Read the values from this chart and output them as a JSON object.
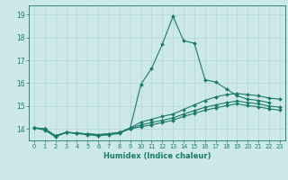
{
  "xlabel": "Humidex (Indice chaleur)",
  "background_color": "#cce8e8",
  "grid_color": "#b8d8d8",
  "line_color": "#1a7a6a",
  "xlim": [
    -0.5,
    23.5
  ],
  "ylim": [
    13.5,
    19.4
  ],
  "yticks": [
    14,
    15,
    16,
    17,
    18,
    19
  ],
  "xticks": [
    0,
    1,
    2,
    3,
    4,
    5,
    6,
    7,
    8,
    9,
    10,
    11,
    12,
    13,
    14,
    15,
    16,
    17,
    18,
    19,
    20,
    21,
    22,
    23
  ],
  "line1_x": [
    0,
    1,
    2,
    3,
    4,
    5,
    6,
    7,
    8,
    9,
    10,
    11,
    12,
    13,
    14,
    15,
    16,
    17,
    18,
    19,
    20,
    21,
    22
  ],
  "line1_y": [
    14.05,
    13.95,
    13.65,
    13.85,
    13.8,
    13.75,
    13.7,
    13.75,
    13.8,
    14.05,
    15.95,
    16.65,
    17.7,
    18.92,
    17.85,
    17.75,
    16.15,
    16.05,
    15.75,
    15.45,
    15.3,
    15.25,
    15.15
  ],
  "line2_x": [
    0,
    1,
    2,
    3,
    4,
    5,
    6,
    7,
    8,
    9,
    10,
    11,
    12,
    13,
    14,
    15,
    16,
    17,
    18,
    19,
    20,
    21,
    22,
    23
  ],
  "line2_y": [
    14.05,
    14.0,
    13.7,
    13.85,
    13.82,
    13.78,
    13.75,
    13.78,
    13.85,
    14.05,
    14.3,
    14.42,
    14.55,
    14.65,
    14.85,
    15.05,
    15.25,
    15.4,
    15.5,
    15.55,
    15.5,
    15.45,
    15.35,
    15.3
  ],
  "line3_x": [
    0,
    1,
    2,
    3,
    4,
    5,
    6,
    7,
    8,
    9,
    10,
    11,
    12,
    13,
    14,
    15,
    16,
    17,
    18,
    19,
    20,
    21,
    22,
    23
  ],
  "line3_y": [
    14.05,
    14.0,
    13.7,
    13.85,
    13.82,
    13.78,
    13.75,
    13.78,
    13.85,
    14.02,
    14.18,
    14.28,
    14.38,
    14.48,
    14.65,
    14.8,
    14.95,
    15.05,
    15.15,
    15.22,
    15.15,
    15.1,
    15.0,
    14.95
  ],
  "line4_x": [
    0,
    1,
    2,
    3,
    4,
    5,
    6,
    7,
    8,
    9,
    10,
    11,
    12,
    13,
    14,
    15,
    16,
    17,
    18,
    19,
    20,
    21,
    22,
    23
  ],
  "line4_y": [
    14.05,
    14.0,
    13.7,
    13.85,
    13.82,
    13.78,
    13.75,
    13.78,
    13.85,
    14.0,
    14.1,
    14.18,
    14.28,
    14.38,
    14.55,
    14.68,
    14.82,
    14.92,
    15.02,
    15.1,
    15.02,
    14.97,
    14.88,
    14.82
  ]
}
